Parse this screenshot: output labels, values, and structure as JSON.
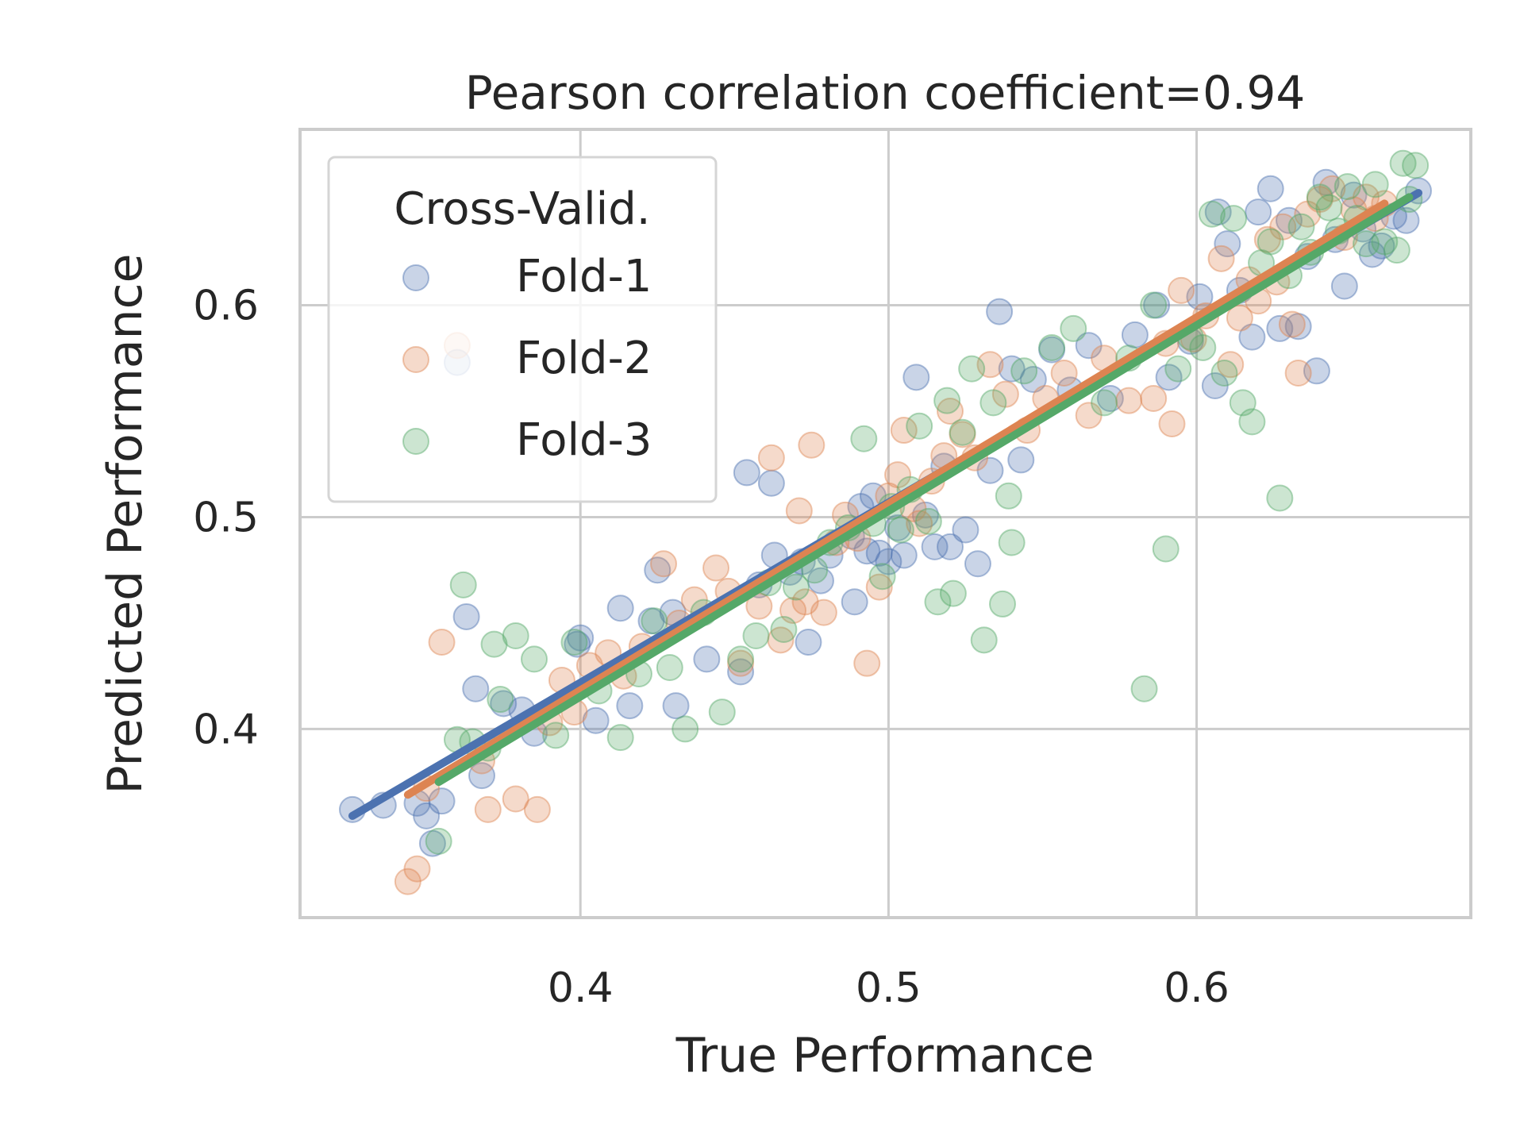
{
  "chart_data": {
    "type": "scatter",
    "title": "Pearson correlation coefficient=0.94",
    "xlabel": "True Performance",
    "ylabel": "Predicted Performance",
    "xlim": [
      0.309,
      0.689
    ],
    "ylim": [
      0.311,
      0.683
    ],
    "xticks": [
      0.4,
      0.5,
      0.6
    ],
    "xtick_labels": [
      "0.4",
      "0.5",
      "0.6"
    ],
    "yticks": [
      0.4,
      0.5,
      0.6
    ],
    "ytick_labels": [
      "0.4",
      "0.5",
      "0.6"
    ],
    "grid": true,
    "legend": {
      "title": "Cross-Valid.",
      "placement": "upper-left"
    },
    "series": [
      {
        "name": "Fold-1",
        "color": "#4c72b0",
        "fit": {
          "x": [
            0.326,
            0.672
          ],
          "y": [
            0.359,
            0.653
          ]
        },
        "points": [
          [
            0.326,
            0.362
          ],
          [
            0.336,
            0.364
          ],
          [
            0.347,
            0.365
          ],
          [
            0.35,
            0.359
          ],
          [
            0.352,
            0.346
          ],
          [
            0.355,
            0.366
          ],
          [
            0.36,
            0.573
          ],
          [
            0.363,
            0.453
          ],
          [
            0.366,
            0.419
          ],
          [
            0.368,
            0.378
          ],
          [
            0.375,
            0.412
          ],
          [
            0.381,
            0.409
          ],
          [
            0.385,
            0.398
          ],
          [
            0.399,
            0.44
          ],
          [
            0.4,
            0.443
          ],
          [
            0.405,
            0.404
          ],
          [
            0.413,
            0.457
          ],
          [
            0.416,
            0.411
          ],
          [
            0.423,
            0.451
          ],
          [
            0.425,
            0.475
          ],
          [
            0.43,
            0.455
          ],
          [
            0.431,
            0.411
          ],
          [
            0.441,
            0.433
          ],
          [
            0.452,
            0.427
          ],
          [
            0.454,
            0.521
          ],
          [
            0.458,
            0.468
          ],
          [
            0.462,
            0.516
          ],
          [
            0.463,
            0.482
          ],
          [
            0.468,
            0.474
          ],
          [
            0.472,
            0.479
          ],
          [
            0.474,
            0.441
          ],
          [
            0.478,
            0.47
          ],
          [
            0.481,
            0.482
          ],
          [
            0.488,
            0.491
          ],
          [
            0.489,
            0.46
          ],
          [
            0.491,
            0.505
          ],
          [
            0.493,
            0.484
          ],
          [
            0.495,
            0.51
          ],
          [
            0.497,
            0.483
          ],
          [
            0.5,
            0.479
          ],
          [
            0.503,
            0.495
          ],
          [
            0.505,
            0.482
          ],
          [
            0.509,
            0.566
          ],
          [
            0.512,
            0.501
          ],
          [
            0.515,
            0.486
          ],
          [
            0.518,
            0.524
          ],
          [
            0.52,
            0.486
          ],
          [
            0.525,
            0.494
          ],
          [
            0.529,
            0.478
          ],
          [
            0.533,
            0.522
          ],
          [
            0.536,
            0.597
          ],
          [
            0.54,
            0.57
          ],
          [
            0.543,
            0.527
          ],
          [
            0.547,
            0.565
          ],
          [
            0.553,
            0.579
          ],
          [
            0.559,
            0.56
          ],
          [
            0.565,
            0.581
          ],
          [
            0.572,
            0.556
          ],
          [
            0.58,
            0.586
          ],
          [
            0.587,
            0.6
          ],
          [
            0.591,
            0.566
          ],
          [
            0.598,
            0.583
          ],
          [
            0.601,
            0.604
          ],
          [
            0.606,
            0.562
          ],
          [
            0.607,
            0.644
          ],
          [
            0.61,
            0.629
          ],
          [
            0.614,
            0.607
          ],
          [
            0.618,
            0.585
          ],
          [
            0.62,
            0.644
          ],
          [
            0.624,
            0.655
          ],
          [
            0.627,
            0.589
          ],
          [
            0.63,
            0.64
          ],
          [
            0.633,
            0.59
          ],
          [
            0.636,
            0.623
          ],
          [
            0.639,
            0.569
          ],
          [
            0.642,
            0.658
          ],
          [
            0.645,
            0.631
          ],
          [
            0.648,
            0.609
          ],
          [
            0.651,
            0.652
          ],
          [
            0.654,
            0.636
          ],
          [
            0.657,
            0.624
          ],
          [
            0.66,
            0.628
          ],
          [
            0.664,
            0.642
          ],
          [
            0.668,
            0.64
          ],
          [
            0.672,
            0.654
          ]
        ]
      },
      {
        "name": "Fold-2",
        "color": "#dd8452",
        "fit": {
          "x": [
            0.344,
            0.661
          ],
          "y": [
            0.369,
            0.648
          ]
        },
        "points": [
          [
            0.344,
            0.328
          ],
          [
            0.347,
            0.334
          ],
          [
            0.35,
            0.372
          ],
          [
            0.355,
            0.441
          ],
          [
            0.36,
            0.581
          ],
          [
            0.368,
            0.385
          ],
          [
            0.37,
            0.362
          ],
          [
            0.379,
            0.367
          ],
          [
            0.386,
            0.362
          ],
          [
            0.39,
            0.403
          ],
          [
            0.394,
            0.423
          ],
          [
            0.398,
            0.408
          ],
          [
            0.403,
            0.43
          ],
          [
            0.409,
            0.436
          ],
          [
            0.414,
            0.425
          ],
          [
            0.42,
            0.439
          ],
          [
            0.427,
            0.478
          ],
          [
            0.432,
            0.45
          ],
          [
            0.437,
            0.461
          ],
          [
            0.444,
            0.476
          ],
          [
            0.448,
            0.465
          ],
          [
            0.452,
            0.431
          ],
          [
            0.458,
            0.458
          ],
          [
            0.462,
            0.528
          ],
          [
            0.465,
            0.442
          ],
          [
            0.469,
            0.456
          ],
          [
            0.471,
            0.503
          ],
          [
            0.473,
            0.46
          ],
          [
            0.475,
            0.534
          ],
          [
            0.479,
            0.455
          ],
          [
            0.483,
            0.488
          ],
          [
            0.486,
            0.501
          ],
          [
            0.49,
            0.49
          ],
          [
            0.493,
            0.431
          ],
          [
            0.497,
            0.467
          ],
          [
            0.5,
            0.51
          ],
          [
            0.503,
            0.52
          ],
          [
            0.505,
            0.541
          ],
          [
            0.508,
            0.504
          ],
          [
            0.51,
            0.497
          ],
          [
            0.514,
            0.517
          ],
          [
            0.518,
            0.529
          ],
          [
            0.52,
            0.55
          ],
          [
            0.524,
            0.539
          ],
          [
            0.528,
            0.528
          ],
          [
            0.533,
            0.572
          ],
          [
            0.538,
            0.558
          ],
          [
            0.545,
            0.541
          ],
          [
            0.551,
            0.556
          ],
          [
            0.557,
            0.568
          ],
          [
            0.565,
            0.548
          ],
          [
            0.57,
            0.575
          ],
          [
            0.578,
            0.555
          ],
          [
            0.586,
            0.556
          ],
          [
            0.59,
            0.582
          ],
          [
            0.592,
            0.544
          ],
          [
            0.595,
            0.607
          ],
          [
            0.599,
            0.584
          ],
          [
            0.603,
            0.595
          ],
          [
            0.608,
            0.622
          ],
          [
            0.611,
            0.572
          ],
          [
            0.614,
            0.594
          ],
          [
            0.617,
            0.612
          ],
          [
            0.62,
            0.602
          ],
          [
            0.623,
            0.631
          ],
          [
            0.626,
            0.611
          ],
          [
            0.628,
            0.637
          ],
          [
            0.631,
            0.591
          ],
          [
            0.633,
            0.568
          ],
          [
            0.636,
            0.643
          ],
          [
            0.64,
            0.65
          ],
          [
            0.644,
            0.655
          ],
          [
            0.648,
            0.632
          ],
          [
            0.651,
            0.645
          ],
          [
            0.655,
            0.651
          ],
          [
            0.658,
            0.641
          ],
          [
            0.661,
            0.648
          ]
        ]
      },
      {
        "name": "Fold-3",
        "color": "#55a868",
        "fit": {
          "x": [
            0.354,
            0.669
          ],
          "y": [
            0.375,
            0.651
          ]
        },
        "points": [
          [
            0.354,
            0.347
          ],
          [
            0.36,
            0.395
          ],
          [
            0.362,
            0.468
          ],
          [
            0.365,
            0.394
          ],
          [
            0.37,
            0.391
          ],
          [
            0.372,
            0.44
          ],
          [
            0.374,
            0.414
          ],
          [
            0.379,
            0.444
          ],
          [
            0.385,
            0.433
          ],
          [
            0.392,
            0.397
          ],
          [
            0.398,
            0.441
          ],
          [
            0.406,
            0.418
          ],
          [
            0.413,
            0.396
          ],
          [
            0.419,
            0.426
          ],
          [
            0.424,
            0.451
          ],
          [
            0.429,
            0.429
          ],
          [
            0.434,
            0.4
          ],
          [
            0.44,
            0.455
          ],
          [
            0.446,
            0.408
          ],
          [
            0.452,
            0.433
          ],
          [
            0.457,
            0.444
          ],
          [
            0.461,
            0.469
          ],
          [
            0.466,
            0.447
          ],
          [
            0.47,
            0.467
          ],
          [
            0.476,
            0.475
          ],
          [
            0.481,
            0.488
          ],
          [
            0.487,
            0.495
          ],
          [
            0.492,
            0.537
          ],
          [
            0.495,
            0.497
          ],
          [
            0.498,
            0.472
          ],
          [
            0.501,
            0.505
          ],
          [
            0.504,
            0.494
          ],
          [
            0.507,
            0.513
          ],
          [
            0.51,
            0.543
          ],
          [
            0.513,
            0.498
          ],
          [
            0.516,
            0.46
          ],
          [
            0.519,
            0.555
          ],
          [
            0.521,
            0.464
          ],
          [
            0.524,
            0.54
          ],
          [
            0.527,
            0.57
          ],
          [
            0.531,
            0.442
          ],
          [
            0.534,
            0.554
          ],
          [
            0.537,
            0.459
          ],
          [
            0.539,
            0.51
          ],
          [
            0.54,
            0.488
          ],
          [
            0.544,
            0.569
          ],
          [
            0.553,
            0.58
          ],
          [
            0.56,
            0.589
          ],
          [
            0.57,
            0.554
          ],
          [
            0.578,
            0.575
          ],
          [
            0.583,
            0.419
          ],
          [
            0.586,
            0.6
          ],
          [
            0.59,
            0.485
          ],
          [
            0.594,
            0.57
          ],
          [
            0.598,
            0.585
          ],
          [
            0.602,
            0.58
          ],
          [
            0.605,
            0.643
          ],
          [
            0.609,
            0.568
          ],
          [
            0.612,
            0.641
          ],
          [
            0.615,
            0.554
          ],
          [
            0.618,
            0.545
          ],
          [
            0.621,
            0.62
          ],
          [
            0.624,
            0.63
          ],
          [
            0.627,
            0.509
          ],
          [
            0.63,
            0.614
          ],
          [
            0.634,
            0.637
          ],
          [
            0.637,
            0.625
          ],
          [
            0.64,
            0.651
          ],
          [
            0.643,
            0.646
          ],
          [
            0.646,
            0.635
          ],
          [
            0.649,
            0.656
          ],
          [
            0.652,
            0.641
          ],
          [
            0.655,
            0.629
          ],
          [
            0.658,
            0.657
          ],
          [
            0.661,
            0.63
          ],
          [
            0.665,
            0.626
          ],
          [
            0.667,
            0.667
          ],
          [
            0.669,
            0.65
          ],
          [
            0.671,
            0.666
          ]
        ]
      }
    ]
  }
}
